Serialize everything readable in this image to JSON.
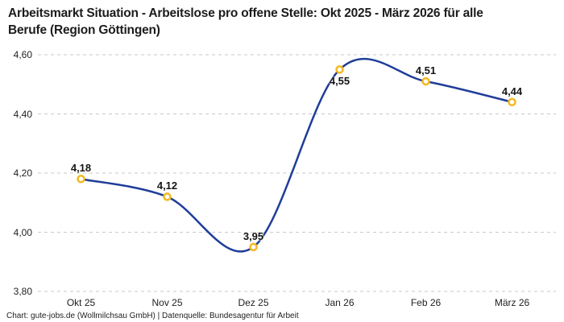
{
  "title": {
    "line1": "Arbeitsmarkt Situation - Arbeitslose pro offene Stelle: Okt 2025 - März 2026 für alle",
    "line2": "Berufe (Region Göttingen)"
  },
  "footer": {
    "text": "Chart: gute-jobs.de (Wollmilchsau GmbH) | Datenquelle: Bundesagentur für Arbeit"
  },
  "chart_data": {
    "type": "line",
    "title": "Arbeitsmarkt Situation - Arbeitslose pro offene Stelle: Okt 2025 - März 2026 für alle Berufe (Region Göttingen)",
    "categories": [
      "Okt 25",
      "Nov 25",
      "Dez 25",
      "Jan 26",
      "Feb 26",
      "März 26"
    ],
    "values": [
      4.18,
      4.12,
      3.95,
      4.55,
      4.51,
      4.44
    ],
    "point_labels": [
      "4,18",
      "4,12",
      "3,95",
      "4,55",
      "4,51",
      "4,44"
    ],
    "label_positions": [
      "above",
      "above",
      "above",
      "below",
      "above",
      "above"
    ],
    "y_ticks": [
      "4,60",
      "4,40",
      "4,20",
      "4,00",
      "3,80"
    ],
    "y_tick_values": [
      4.6,
      4.4,
      4.2,
      4.0,
      3.8
    ],
    "ylim": [
      3.8,
      4.6
    ],
    "xlabel": "",
    "ylabel": "",
    "grid": "dashed horizontal",
    "legend": "none",
    "line_color": "#1f3d99",
    "marker_color": "#f5b81f",
    "marker_fill": "#ffffff",
    "grid_color": "#c9c9c9",
    "curve": "spline"
  }
}
